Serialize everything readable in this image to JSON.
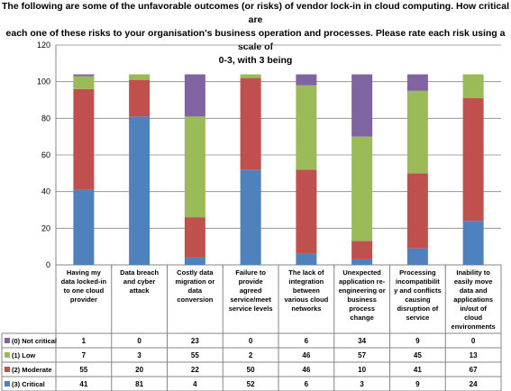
{
  "chart_data": {
    "type": "bar",
    "stacked": true,
    "title_lines": [
      "The following are some of the unfavorable outcomes (or risks) of vendor lock-in in cloud computing. How critical are",
      "each one of these risks to your organisation's business operation and processes. Please rate each risk using a scale of",
      "0-3, with 3 being"
    ],
    "categories": [
      [
        "Having my",
        "data locked-in",
        "to one cloud",
        "provider"
      ],
      [
        "Data breach",
        "and cyber",
        "attack"
      ],
      [
        "Costly data",
        "migration or",
        "data",
        "conversion"
      ],
      [
        "Failure to",
        "provide",
        "agreed",
        "service/meet",
        "service levels"
      ],
      [
        "The lack of",
        "integration",
        "between",
        "various cloud",
        "networks"
      ],
      [
        "Unexpected",
        "application re-",
        "engineering or",
        "business",
        "process",
        "change"
      ],
      [
        "Processing",
        "incompatibilit",
        "y and conflicts",
        "causing",
        "disruption of",
        "service"
      ],
      [
        "Inability to",
        "easily move",
        "data and",
        "applications",
        "in/out of",
        "cloud",
        "environments"
      ]
    ],
    "series": [
      {
        "name": "(3) Critical",
        "color": "#4F81BD",
        "values": [
          41,
          81,
          4,
          52,
          6,
          3,
          9,
          24
        ]
      },
      {
        "name": "(2) Moderate",
        "color": "#C0504D",
        "values": [
          55,
          20,
          22,
          50,
          46,
          10,
          41,
          67
        ]
      },
      {
        "name": "(1) Low",
        "color": "#9BBB59",
        "values": [
          7,
          3,
          55,
          2,
          46,
          57,
          45,
          13
        ]
      },
      {
        "name": "(0) Not critical",
        "color": "#8064A2",
        "values": [
          1,
          0,
          23,
          0,
          6,
          34,
          9,
          0
        ]
      }
    ],
    "table_order": [
      "(0) Not critical",
      "(1) Low",
      "(2) Moderate",
      "(3) Critical"
    ],
    "ylim": [
      0,
      120
    ],
    "yticks": [
      0,
      20,
      40,
      60,
      80,
      100,
      120
    ],
    "grid": true,
    "legend": "data-table"
  }
}
